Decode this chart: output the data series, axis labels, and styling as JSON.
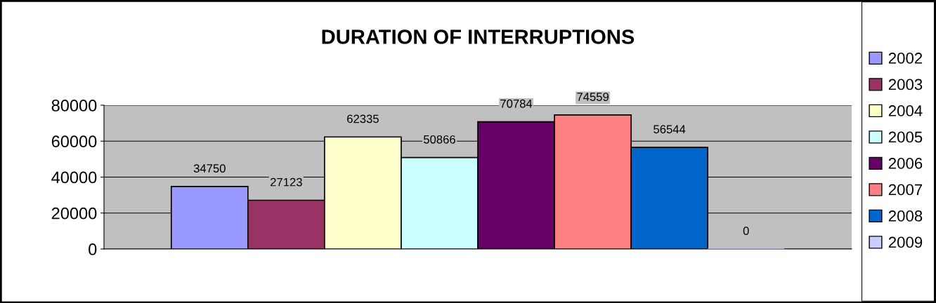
{
  "chart_data": {
    "type": "bar",
    "title": "DURATION OF INTERRUPTIONS",
    "categories": [
      null
    ],
    "series": [
      {
        "name": "2002",
        "color": "#9999ff",
        "values": [
          34750
        ]
      },
      {
        "name": "2003",
        "color": "#993366",
        "values": [
          27123
        ]
      },
      {
        "name": "2004",
        "color": "#ffffcc",
        "values": [
          62335
        ]
      },
      {
        "name": "2005",
        "color": "#ccffff",
        "values": [
          50866
        ]
      },
      {
        "name": "2006",
        "color": "#660066",
        "values": [
          70784
        ]
      },
      {
        "name": "2007",
        "color": "#ff8080",
        "values": [
          74559
        ]
      },
      {
        "name": "2008",
        "color": "#0066cc",
        "values": [
          56544
        ]
      },
      {
        "name": "2009",
        "color": "#ccccff",
        "values": [
          0
        ]
      }
    ],
    "ylim": [
      0,
      80000
    ],
    "yticks": [
      0,
      20000,
      40000,
      60000,
      80000
    ],
    "grid": "y",
    "legend": "right",
    "data_labels": true
  }
}
